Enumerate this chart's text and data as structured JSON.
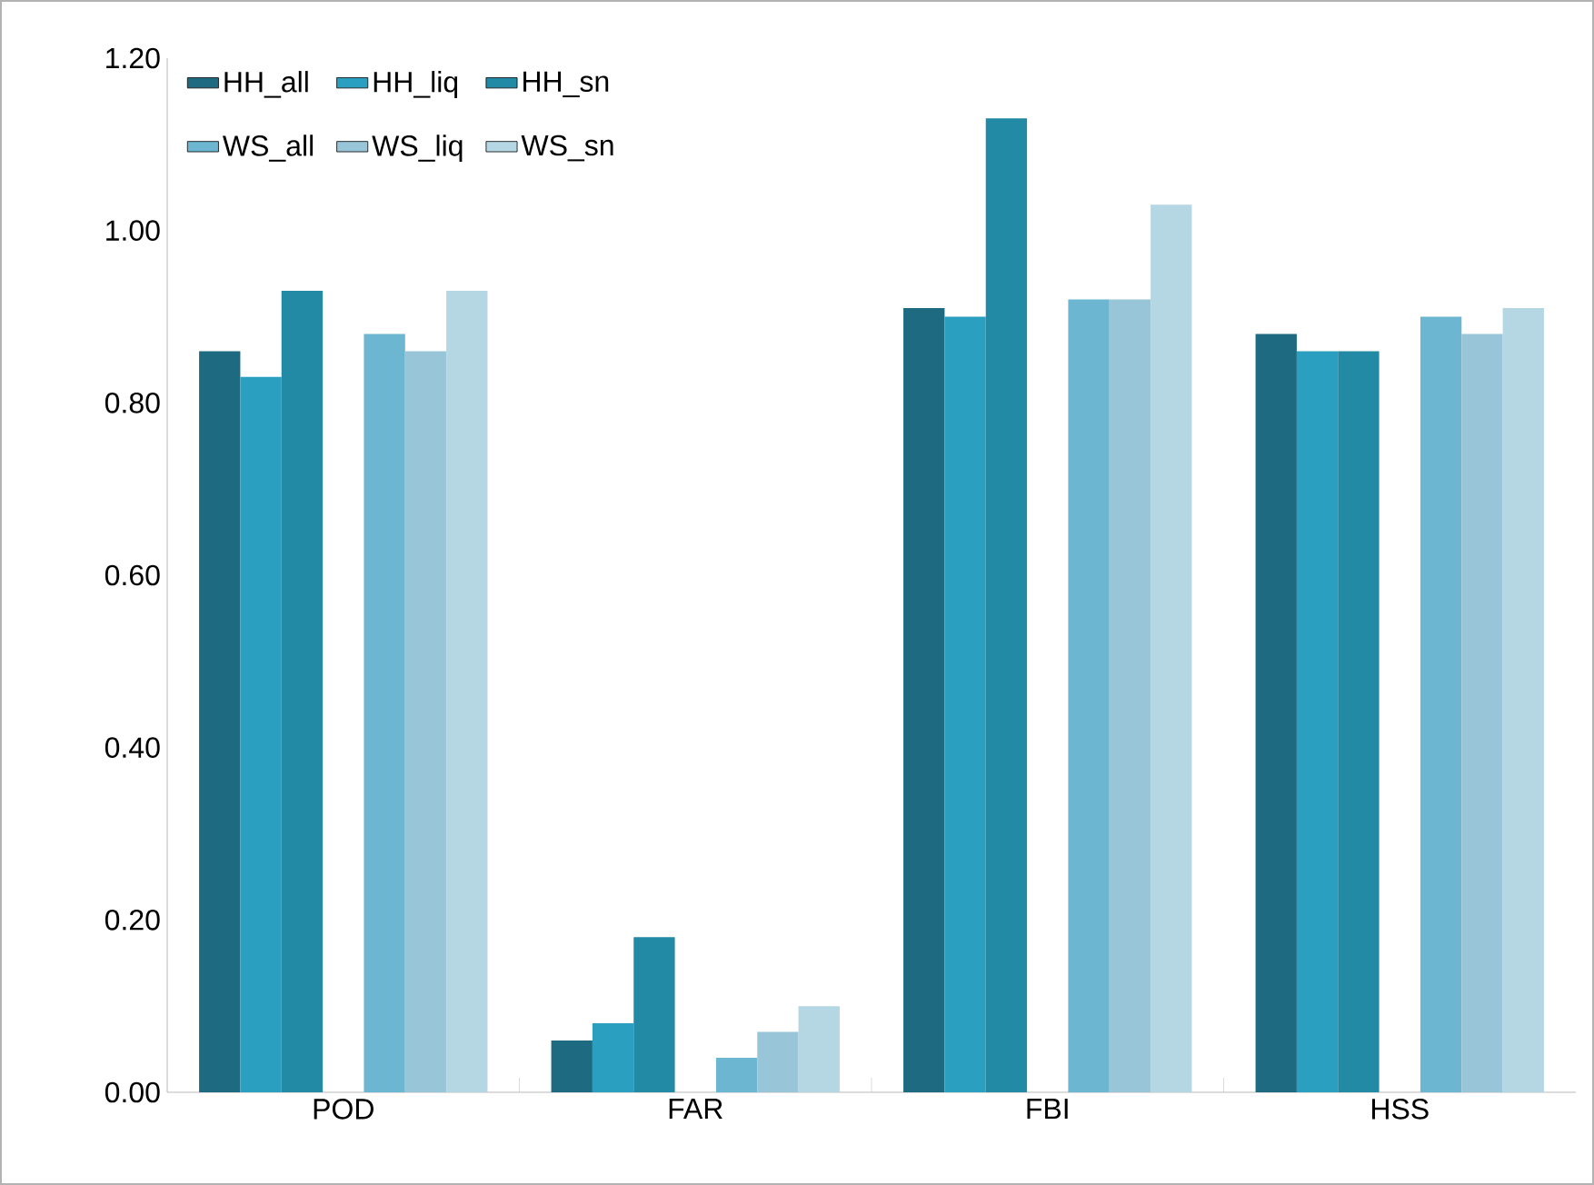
{
  "chart_data": {
    "type": "bar",
    "categories": [
      "POD",
      "FAR",
      "FBI",
      "HSS"
    ],
    "series": [
      {
        "name": "HH_all",
        "color": "#1e6a80",
        "values": [
          0.86,
          0.06,
          0.91,
          0.88
        ]
      },
      {
        "name": "HH_liq",
        "color": "#2b9fc0",
        "values": [
          0.83,
          0.08,
          0.9,
          0.86
        ]
      },
      {
        "name": "HH_sn",
        "color": "#238aa5",
        "values": [
          0.93,
          0.18,
          1.13,
          0.86
        ]
      },
      {
        "color": "#2eaed0",
        "values": [
          null,
          null,
          null,
          null
        ]
      },
      {
        "name": "WS_all",
        "color": "#6cb6d1",
        "values": [
          0.88,
          0.04,
          0.92,
          0.9
        ]
      },
      {
        "name": "WS_liq",
        "color": "#98c5d8",
        "values": [
          0.86,
          0.07,
          0.92,
          0.88
        ]
      },
      {
        "name": "WS_sn",
        "color": "#b4d7e3",
        "values": [
          0.93,
          0.1,
          1.03,
          0.91
        ]
      }
    ],
    "ylim": [
      0,
      1.2
    ],
    "yticks": [
      {
        "value": 0,
        "label": "0.00"
      },
      {
        "value": 0.2,
        "label": "0.20"
      },
      {
        "value": 0.4,
        "label": "0.40"
      },
      {
        "value": 0.6,
        "label": "0.60"
      },
      {
        "value": 0.8,
        "label": "0.80"
      },
      {
        "value": 1.0,
        "label": "1.00"
      },
      {
        "value": 1.2,
        "label": "1.20"
      }
    ],
    "legend": "top left",
    "grid": false
  }
}
